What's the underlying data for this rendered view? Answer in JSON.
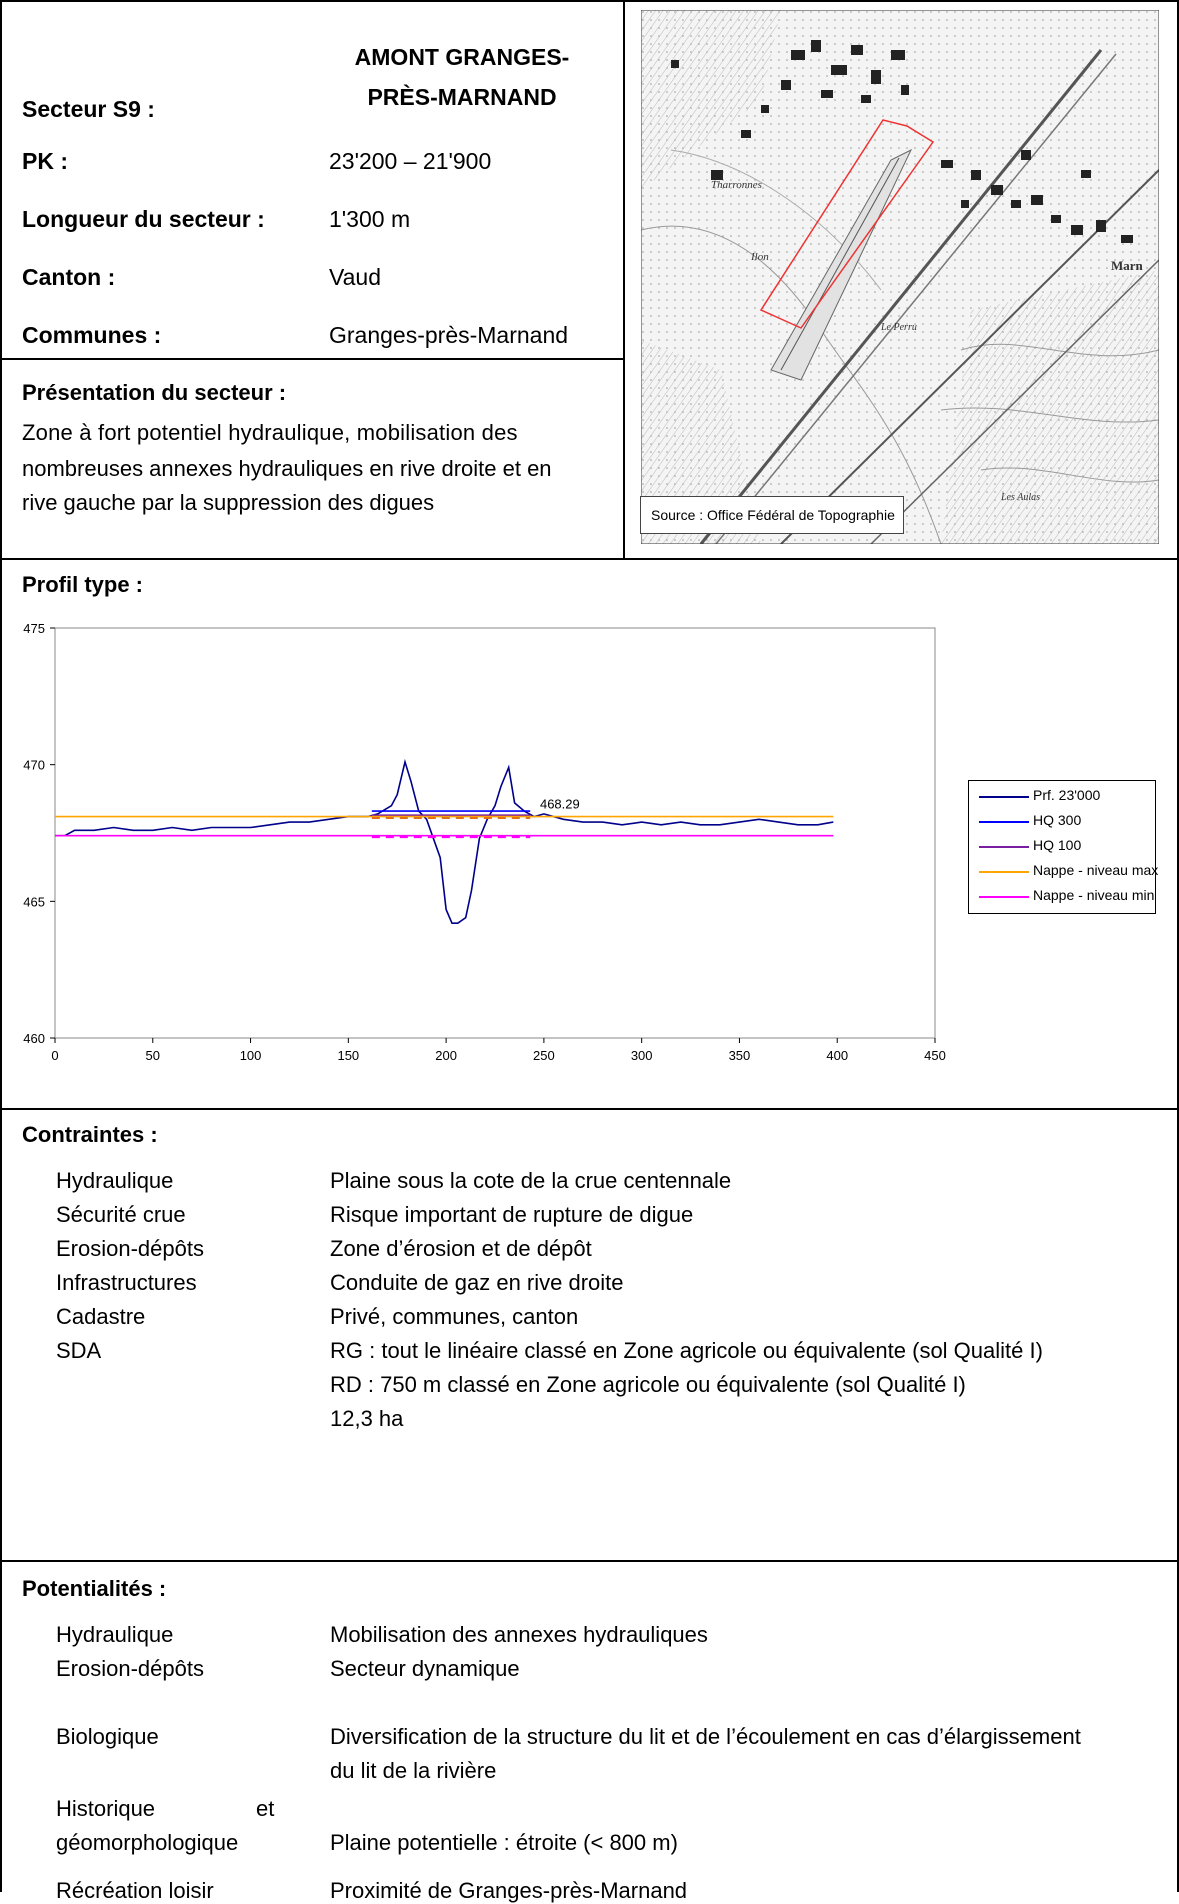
{
  "header": {
    "secteur_label": "Secteur S9 :",
    "secteur_title_line1": "AMONT GRANGES-",
    "secteur_title_line2": "PRÈS-MARNAND",
    "pk_label": "PK :",
    "pk_value": "23'200 – 21'900",
    "longueur_label": "Longueur du secteur :",
    "longueur_value": "1'300 m",
    "canton_label": "Canton :",
    "canton_value": "Vaud",
    "communes_label": "Communes :",
    "communes_value": "Granges-près-Marnand"
  },
  "presentation": {
    "label": "Présentation du secteur :",
    "line1": "Zone à fort potentiel hydraulique, mobilisation des",
    "line2": "nombreuses annexes hydrauliques en rive droite et en",
    "line3": "rive gauche par la suppression des digues"
  },
  "map": {
    "source": "Source : Office Fédéral de Topographie"
  },
  "profil": {
    "label": "Profil type :"
  },
  "chart_data": {
    "type": "line",
    "title": "",
    "xlabel": "",
    "ylabel": "",
    "xlim": [
      0,
      450
    ],
    "ylim": [
      460,
      475
    ],
    "x_ticks": [
      "0",
      "50",
      "100",
      "150",
      "200",
      "250",
      "300",
      "350",
      "400",
      "450"
    ],
    "y_ticks": [
      "460",
      "465",
      "470",
      "475"
    ],
    "annotation": "468.29",
    "legend_position": "right",
    "series": [
      {
        "name": "Prf. 23'000",
        "color": "#00008b",
        "points": [
          [
            0,
            467.4
          ],
          [
            5,
            467.4
          ],
          [
            10,
            467.6
          ],
          [
            20,
            467.6
          ],
          [
            30,
            467.7
          ],
          [
            40,
            467.6
          ],
          [
            50,
            467.6
          ],
          [
            60,
            467.7
          ],
          [
            70,
            467.6
          ],
          [
            80,
            467.7
          ],
          [
            90,
            467.7
          ],
          [
            100,
            467.7
          ],
          [
            110,
            467.8
          ],
          [
            120,
            467.9
          ],
          [
            130,
            467.9
          ],
          [
            140,
            468.0
          ],
          [
            150,
            468.1
          ],
          [
            160,
            468.1
          ],
          [
            165,
            468.2
          ],
          [
            172,
            468.5
          ],
          [
            175,
            468.9
          ],
          [
            179,
            470.1
          ],
          [
            182,
            469.4
          ],
          [
            186,
            468.3
          ],
          [
            190,
            468.0
          ],
          [
            193,
            467.4
          ],
          [
            197,
            466.6
          ],
          [
            200,
            464.7
          ],
          [
            203,
            464.2
          ],
          [
            206,
            464.2
          ],
          [
            210,
            464.4
          ],
          [
            213,
            465.4
          ],
          [
            217,
            467.3
          ],
          [
            221,
            468.0
          ],
          [
            225,
            468.5
          ],
          [
            228,
            469.2
          ],
          [
            232,
            469.9
          ],
          [
            235,
            468.6
          ],
          [
            240,
            468.3
          ],
          [
            245,
            468.1
          ],
          [
            250,
            468.2
          ],
          [
            260,
            468.0
          ],
          [
            270,
            467.9
          ],
          [
            280,
            467.9
          ],
          [
            290,
            467.8
          ],
          [
            300,
            467.9
          ],
          [
            310,
            467.8
          ],
          [
            320,
            467.9
          ],
          [
            330,
            467.8
          ],
          [
            340,
            467.8
          ],
          [
            350,
            467.9
          ],
          [
            360,
            468.0
          ],
          [
            370,
            467.9
          ],
          [
            380,
            467.8
          ],
          [
            390,
            467.8
          ],
          [
            398,
            467.9
          ]
        ]
      },
      {
        "name": "HQ 300",
        "color": "#0000ff",
        "points": [
          [
            162,
            468.3
          ],
          [
            243,
            468.3
          ]
        ]
      },
      {
        "name": "HQ 100",
        "color": "#7a1fa2",
        "points": [
          [
            162,
            468.15
          ],
          [
            243,
            468.15
          ]
        ]
      },
      {
        "name": "Nappe - niveau max",
        "color": "#ffa500",
        "points": [
          [
            0,
            468.1
          ],
          [
            398,
            468.1
          ]
        ]
      },
      {
        "name": "Nappe - niveau min",
        "color": "#ff00ff",
        "points": [
          [
            0,
            467.4
          ],
          [
            398,
            467.4
          ]
        ]
      }
    ]
  },
  "contraintes": {
    "label": "Contraintes :",
    "rows": [
      {
        "k": "Hydraulique",
        "v": "Plaine sous la cote de la crue centennale"
      },
      {
        "k": "Sécurité crue",
        "v": "Risque important de rupture de digue"
      },
      {
        "k": "Erosion-dépôts",
        "v": "Zone d’érosion et de dépôt"
      },
      {
        "k": "Infrastructures",
        "v": "Conduite de gaz en rive droite"
      },
      {
        "k": "Cadastre",
        "v": "Privé, communes, canton"
      },
      {
        "k": "SDA",
        "v": "RG : tout le linéaire classé en Zone agricole ou équivalente (sol Qualité I)"
      }
    ],
    "sda_line2": "RD : 750 m classé en Zone agricole ou équivalente (sol Qualité I)",
    "sda_line3": "12,3 ha"
  },
  "potentialites": {
    "label": "Potentialités :",
    "hydraulique_k": "Hydraulique",
    "hydraulique_v": "Mobilisation des annexes hydrauliques",
    "erosion_k": "Erosion-dépôts",
    "erosion_v": "Secteur dynamique",
    "bio_k": "Biologique",
    "bio_v1": "Diversification de la structure du lit et de l’écoulement en cas d’élargissement",
    "bio_v2": "du lit de la rivière",
    "hist_k1": "Historique",
    "hist_k1b": "et",
    "hist_k2": "géomorphologique",
    "hist_v": "Plaine potentielle : étroite (< 800 m)",
    "rec_k": "Récréation loisir",
    "rec_v": "Proximité de Granges-près-Marnand"
  }
}
